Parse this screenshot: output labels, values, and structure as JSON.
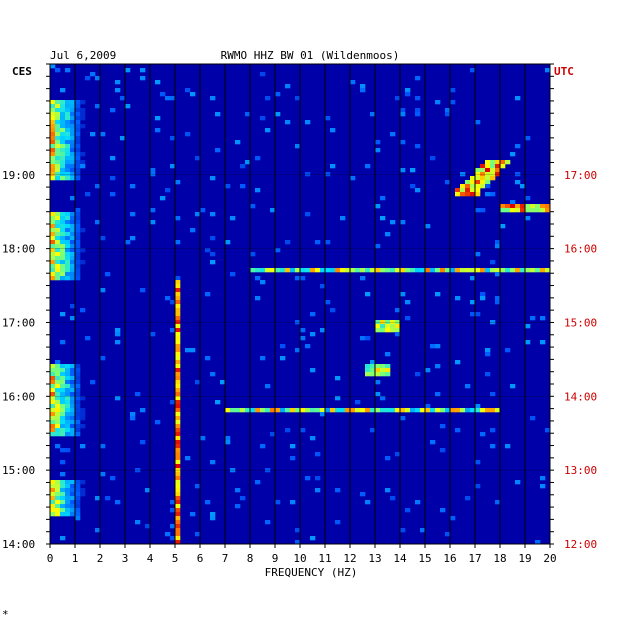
{
  "header": {
    "date": "Jul 6,2009",
    "station": "RWMO HHZ BW 01 (Wildenmoos)",
    "left_tz": "CES",
    "right_tz": "UTC"
  },
  "footer": {
    "xlabel": "FREQUENCY (HZ)",
    "corner_mark": "*"
  },
  "colors": {
    "background": "#0000a8",
    "left_labels": "#000000",
    "right_labels": "#cc0000"
  },
  "chart_data": {
    "type": "heatmap",
    "title": "RWMO HHZ BW 01 (Wildenmoos)",
    "xlabel": "FREQUENCY (HZ)",
    "xlim": [
      0,
      20
    ],
    "x_ticks": [
      "0",
      "1",
      "2",
      "3",
      "4",
      "5",
      "6",
      "7",
      "8",
      "9",
      "10",
      "11",
      "12",
      "13",
      "14",
      "15",
      "16",
      "17",
      "18",
      "19",
      "20"
    ],
    "ylim_hours": [
      14,
      20.5
    ],
    "y_ticks_left": [
      {
        "hour": 19,
        "label": "19:00"
      },
      {
        "hour": 18,
        "label": "18:00"
      },
      {
        "hour": 17,
        "label": "17:00"
      },
      {
        "hour": 16,
        "label": "16:00"
      },
      {
        "hour": 15,
        "label": "15:00"
      },
      {
        "hour": 14,
        "label": "14:00"
      }
    ],
    "y_ticks_right": [
      {
        "hour": 19,
        "label": "17:00"
      },
      {
        "hour": 18,
        "label": "16:00"
      },
      {
        "hour": 17,
        "label": "15:00"
      },
      {
        "hour": 16,
        "label": "14:00"
      },
      {
        "hour": 15,
        "label": "13:00"
      },
      {
        "hour": 14,
        "label": "12:00"
      }
    ],
    "grid": true,
    "features": [
      {
        "name": "low-frequency noise",
        "f_range": [
          0,
          1.5
        ],
        "t_ranges": [
          [
            14.4,
            14.85
          ],
          [
            15.45,
            16.45
          ],
          [
            17.55,
            18.5
          ],
          [
            18.95,
            20.0
          ]
        ]
      },
      {
        "name": "5 Hz tonal line",
        "freq": 5.1,
        "t_range": [
          14.0,
          17.55
        ]
      },
      {
        "name": "transient band",
        "f_range": [
          7.0,
          18.0
        ],
        "t": 15.82
      },
      {
        "name": "transient band",
        "f_range": [
          8.0,
          20.0
        ],
        "t": 17.7
      },
      {
        "name": "spot",
        "f_range": [
          13.0,
          14.0
        ],
        "t": 16.95
      },
      {
        "name": "spot",
        "f_range": [
          12.7,
          13.5
        ],
        "t": 16.35
      },
      {
        "name": "sweep",
        "f_range": [
          16.5,
          18.0
        ],
        "t_range": [
          18.7,
          19.2
        ]
      },
      {
        "name": "line",
        "f_range": [
          18.0,
          20.0
        ],
        "t": 18.55
      }
    ]
  }
}
